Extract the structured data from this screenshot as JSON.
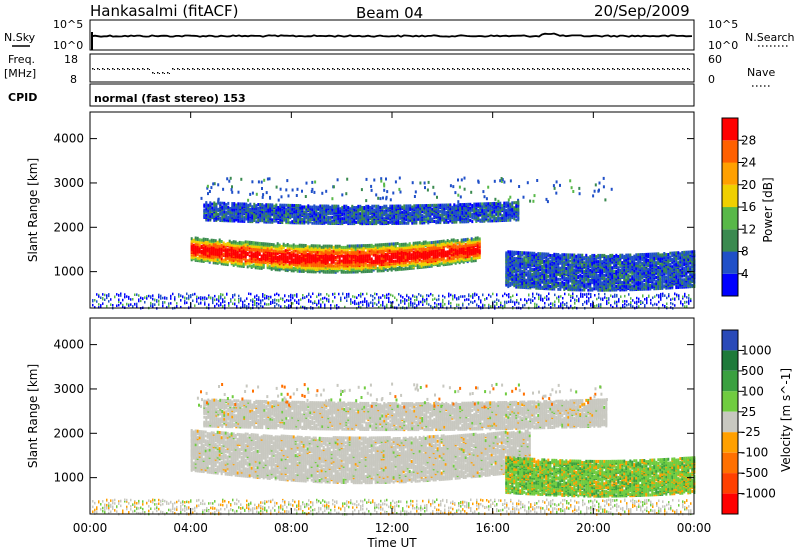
{
  "header": {
    "station": "Hankasalmi (fitACF)",
    "beam": "Beam 04",
    "date": "20/Sep/2009"
  },
  "strip_labels": {
    "nsky": "N.Sky",
    "nsearch": "N.Search",
    "freq": "Freq.",
    "freq_unit": "[MHz]",
    "cpid": "CPID",
    "nave": "Nave",
    "cpid_text": "normal (fast stereo) 153",
    "noise_ticks_top": "10^5",
    "noise_ticks_bottom": "10^0",
    "freq_ticks_top": "18",
    "freq_ticks_bottom": "8",
    "nave_ticks_top": "60",
    "nave_ticks_bottom": "0"
  },
  "colors": {
    "power": [
      "#0000ff",
      "#2050c8",
      "#3a8a50",
      "#58b848",
      "#f0d000",
      "#ffa000",
      "#ff6000",
      "#ff0000"
    ],
    "velocity": [
      "#2a4ab8",
      "#1e7a3a",
      "#3aa040",
      "#70cc40",
      "#c8c8c0",
      "#ffa000",
      "#ff7000",
      "#ff4000",
      "#ff0000"
    ],
    "gray_echo": "#c8c8c0"
  },
  "chart_data": [
    {
      "type": "heatmap",
      "panel": "power",
      "ylabel": "Slant Range [km]",
      "xlabel": "",
      "x_ticks": [
        "00:00",
        "04:00",
        "08:00",
        "12:00",
        "16:00",
        "20:00",
        "00:00"
      ],
      "xlim_hours": [
        0,
        24
      ],
      "y_ticks": [
        1000,
        2000,
        3000,
        4000
      ],
      "ylim": [
        180,
        4600
      ],
      "colorbar_label": "Power [dB]",
      "colorbar_ticks": [
        "4",
        "8",
        "12",
        "16",
        "20",
        "24",
        "28"
      ],
      "features": [
        {
          "name": "main band",
          "t_start": 4.0,
          "t_end": 15.5,
          "range_km": [
            1300,
            1800
          ],
          "power_db": 26
        },
        {
          "name": "upper band",
          "t_start": 4.5,
          "t_end": 17.0,
          "range_km": [
            2200,
            2600
          ],
          "power_db": 8
        },
        {
          "name": "late band",
          "t_start": 16.5,
          "t_end": 24.0,
          "range_km": [
            700,
            1500
          ],
          "power_db": 12
        }
      ]
    },
    {
      "type": "heatmap",
      "panel": "velocity",
      "ylabel": "Slant Range [km]",
      "xlabel": "Time UT",
      "x_ticks": [
        "00:00",
        "04:00",
        "08:00",
        "12:00",
        "16:00",
        "20:00",
        "00:00"
      ],
      "xlim_hours": [
        0,
        24
      ],
      "y_ticks": [
        1000,
        2000,
        3000,
        4000
      ],
      "ylim": [
        180,
        4600
      ],
      "colorbar_label": "Velocity [m s^-1]",
      "colorbar_ticks": [
        "1000",
        "500",
        "100",
        "25",
        "-25",
        "-100",
        "-500",
        "-1000"
      ],
      "features": [
        {
          "name": "ground scatter",
          "t_start": 4.0,
          "t_end": 17.5,
          "range_km": [
            1200,
            2100
          ],
          "velocity": 0
        },
        {
          "name": "upper gray",
          "t_start": 4.5,
          "t_end": 20.5,
          "range_km": [
            2200,
            2800
          ],
          "velocity": 0
        },
        {
          "name": "late green",
          "t_start": 16.5,
          "t_end": 24.0,
          "range_km": [
            700,
            1500
          ],
          "velocity": 150
        }
      ]
    }
  ]
}
